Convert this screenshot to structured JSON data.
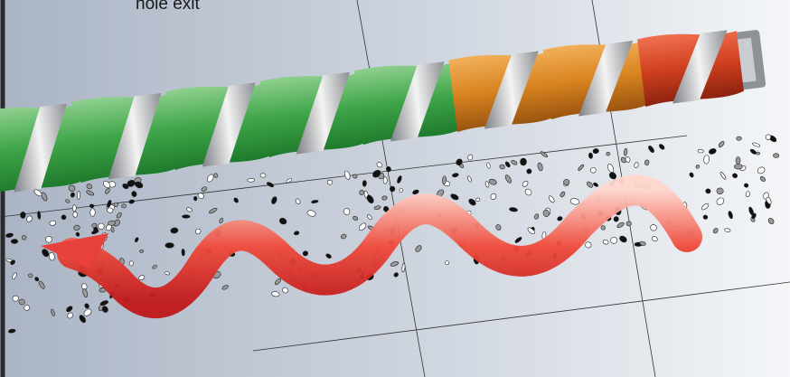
{
  "annotation": {
    "text": "hole exit"
  }
}
